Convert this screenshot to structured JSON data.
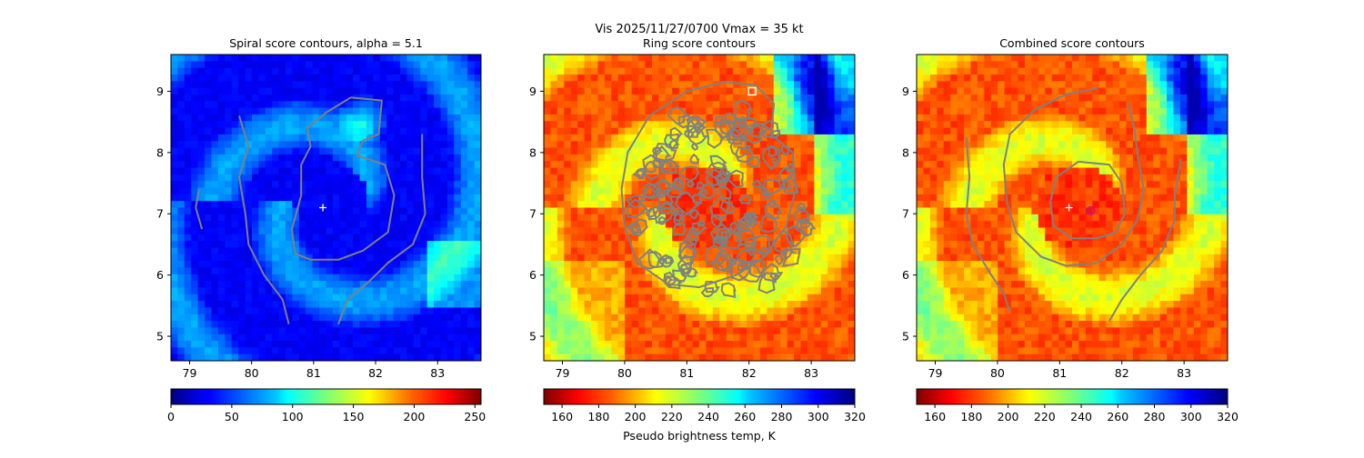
{
  "suptitle": {
    "line": "Vis  2025/11/27/0700    Vmax = 35 kt"
  },
  "colors": {
    "contour": "#808080",
    "storm_center_marker": "#ffffff",
    "combined_max_marker": "#c71585",
    "ring_max_marker": "#ffffff"
  },
  "chart_data": [
    {
      "type": "heatmap",
      "title": "Spiral score contours, alpha =  5.1",
      "colormap": "jet",
      "xticks": [
        79,
        80,
        81,
        82,
        83
      ],
      "yticks": [
        5,
        6,
        7,
        8,
        9
      ],
      "xlim": [
        78.7,
        83.7
      ],
      "ylim": [
        4.6,
        9.6
      ],
      "colorbar": {
        "ticks": [
          0,
          50,
          100,
          150,
          200,
          250
        ],
        "range": [
          0,
          255
        ],
        "reversed": false,
        "label": ""
      },
      "center_marker": {
        "x": 81.15,
        "y": 7.1,
        "symbol": "+"
      },
      "contours": [
        {
          "name": "inner-loop",
          "points": [
            [
              81.6,
              8.9
            ],
            [
              82.1,
              8.85
            ],
            [
              82.05,
              8.3
            ],
            [
              81.8,
              8.2
            ],
            [
              81.7,
              7.95
            ],
            [
              82.15,
              7.8
            ],
            [
              82.3,
              7.3
            ],
            [
              82.2,
              6.7
            ],
            [
              81.8,
              6.4
            ],
            [
              81.4,
              6.25
            ],
            [
              80.95,
              6.25
            ],
            [
              80.7,
              6.35
            ],
            [
              80.65,
              6.75
            ],
            [
              80.8,
              7.3
            ],
            [
              80.8,
              7.8
            ],
            [
              80.95,
              8.1
            ],
            [
              80.9,
              8.4
            ],
            [
              81.2,
              8.65
            ],
            [
              81.6,
              8.9
            ]
          ]
        },
        {
          "name": "outer-west",
          "points": [
            [
              79.8,
              8.6
            ],
            [
              79.95,
              8.1
            ],
            [
              79.8,
              7.6
            ],
            [
              79.9,
              7.0
            ],
            [
              79.95,
              6.5
            ],
            [
              80.2,
              6.0
            ],
            [
              80.5,
              5.6
            ],
            [
              80.6,
              5.2
            ]
          ]
        },
        {
          "name": "outer-east",
          "points": [
            [
              82.75,
              8.3
            ],
            [
              82.75,
              7.6
            ],
            [
              82.8,
              7.0
            ],
            [
              82.6,
              6.5
            ],
            [
              82.2,
              6.2
            ],
            [
              81.9,
              5.9
            ],
            [
              81.55,
              5.6
            ],
            [
              81.4,
              5.2
            ]
          ]
        },
        {
          "name": "far-west-fragment",
          "points": [
            [
              79.15,
              7.4
            ],
            [
              79.1,
              7.1
            ],
            [
              79.2,
              6.75
            ]
          ]
        }
      ]
    },
    {
      "type": "heatmap",
      "title": "Ring score contours",
      "xlabel": "Pseudo brightness temp, K",
      "colormap": "jet_r",
      "xticks": [
        79,
        80,
        81,
        82,
        83
      ],
      "yticks": [
        5,
        6,
        7,
        8,
        9
      ],
      "xlim": [
        78.7,
        83.7
      ],
      "ylim": [
        4.6,
        9.6
      ],
      "colorbar": {
        "ticks": [
          160,
          180,
          200,
          220,
          240,
          260,
          280,
          300,
          320
        ],
        "range": [
          150,
          320
        ],
        "reversed": true
      },
      "max_marker": {
        "x": 82.05,
        "y": 9.0,
        "symbol": "square"
      },
      "contour_region": {
        "center": [
          81.5,
          7.2
        ],
        "radius_deg": 1.55
      },
      "contours": [
        {
          "name": "ring-outline",
          "points": [
            [
              81.0,
              9.0
            ],
            [
              81.6,
              9.15
            ],
            [
              82.1,
              9.1
            ],
            [
              82.4,
              8.8
            ],
            [
              82.35,
              8.3
            ],
            [
              82.7,
              8.0
            ],
            [
              82.75,
              7.4
            ],
            [
              82.6,
              6.8
            ],
            [
              82.25,
              6.3
            ],
            [
              81.8,
              6.0
            ],
            [
              81.2,
              5.8
            ],
            [
              80.7,
              5.85
            ],
            [
              80.2,
              6.2
            ],
            [
              80.0,
              6.8
            ],
            [
              79.95,
              7.4
            ],
            [
              80.05,
              8.0
            ],
            [
              80.4,
              8.6
            ],
            [
              81.0,
              9.0
            ]
          ]
        }
      ]
    },
    {
      "type": "heatmap",
      "title": "Combined score contours",
      "colormap": "jet_r",
      "xticks": [
        79,
        80,
        81,
        82,
        83
      ],
      "yticks": [
        5,
        6,
        7,
        8,
        9
      ],
      "xlim": [
        78.7,
        83.7
      ],
      "ylim": [
        4.6,
        9.6
      ],
      "colorbar": {
        "ticks": [
          160,
          180,
          200,
          220,
          240,
          260,
          280,
          300,
          320
        ],
        "range": [
          150,
          320
        ],
        "reversed": true
      },
      "center_marker": {
        "x": 81.15,
        "y": 7.1,
        "symbol": "+"
      },
      "max_marker": {
        "x": 81.5,
        "y": 7.05,
        "symbol": "circle"
      },
      "contours": [
        {
          "name": "inner-loop",
          "points": [
            [
              81.3,
              7.85
            ],
            [
              81.8,
              7.8
            ],
            [
              82.0,
              7.5
            ],
            [
              82.05,
              7.0
            ],
            [
              81.9,
              6.7
            ],
            [
              81.6,
              6.6
            ],
            [
              81.2,
              6.6
            ],
            [
              80.9,
              6.8
            ],
            [
              80.85,
              7.2
            ],
            [
              80.95,
              7.6
            ],
            [
              81.3,
              7.85
            ]
          ]
        },
        {
          "name": "outer-loop",
          "points": [
            [
              81.6,
              9.05
            ],
            [
              81.1,
              8.95
            ],
            [
              80.6,
              8.7
            ],
            [
              80.2,
              8.3
            ],
            [
              80.1,
              7.8
            ],
            [
              80.15,
              7.2
            ],
            [
              80.3,
              6.7
            ],
            [
              80.7,
              6.3
            ],
            [
              81.1,
              6.15
            ],
            [
              81.6,
              6.2
            ],
            [
              82.0,
              6.5
            ],
            [
              82.25,
              6.9
            ],
            [
              82.35,
              7.4
            ],
            [
              82.25,
              8.0
            ],
            [
              82.2,
              8.4
            ],
            [
              82.1,
              8.8
            ]
          ]
        },
        {
          "name": "far-west",
          "points": [
            [
              79.5,
              8.25
            ],
            [
              79.55,
              7.6
            ],
            [
              79.5,
              7.0
            ],
            [
              79.6,
              6.5
            ],
            [
              79.9,
              6.0
            ],
            [
              80.1,
              5.7
            ],
            [
              80.2,
              5.4
            ]
          ]
        },
        {
          "name": "far-east",
          "points": [
            [
              82.95,
              7.9
            ],
            [
              82.85,
              7.3
            ],
            [
              82.85,
              6.9
            ],
            [
              82.65,
              6.4
            ],
            [
              82.3,
              6.0
            ],
            [
              82.0,
              5.6
            ],
            [
              81.8,
              5.25
            ]
          ]
        }
      ]
    }
  ]
}
